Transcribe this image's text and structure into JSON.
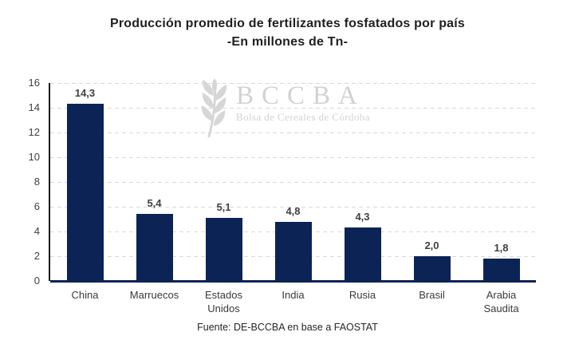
{
  "header": {
    "title": "Producción promedio de fertilizantes fosfatados por país",
    "subtitle": "-En millones de Tn-"
  },
  "footer": {
    "source": "Fuente: DE-BCCBA en base a FAOSTAT"
  },
  "watermark": {
    "icon": "wheat-stalk-icon",
    "acronym": "BCCBA",
    "name": "Bolsa de Cereales de Córdoba"
  },
  "colors": {
    "bar": "#0c2355",
    "gridline": "#d9d9d9",
    "y_axis_line": "#1a1a1a",
    "x_axis_line": "#0c2355",
    "data_label": "#404040",
    "tick_label": "#404040",
    "title_text": "#1f1f1f",
    "watermark_text": "#d2d2d2",
    "background": "#ffffff"
  },
  "chart_data": {
    "type": "bar",
    "title": "Producción promedio de fertilizantes fosfatados por país",
    "subtitle": "-En millones de Tn-",
    "categories": [
      "China",
      "Marruecos",
      "Estados Unidos",
      "India",
      "Rusia",
      "Brasil",
      "Arabia Saudita"
    ],
    "values": [
      14.3,
      5.4,
      5.1,
      4.8,
      4.3,
      2.0,
      1.8
    ],
    "value_labels": [
      "14,3",
      "5,4",
      "5,1",
      "4,8",
      "4,3",
      "2,0",
      "1,8"
    ],
    "unit": "millones de Tn",
    "xlabel": "",
    "ylabel": "",
    "ylim": [
      0,
      16
    ],
    "yticks": [
      0,
      2,
      4,
      6,
      8,
      10,
      12,
      14,
      16
    ],
    "grid": "horizontal-dashed",
    "legend": "none",
    "source": "Fuente: DE-BCCBA en base a FAOSTAT"
  }
}
